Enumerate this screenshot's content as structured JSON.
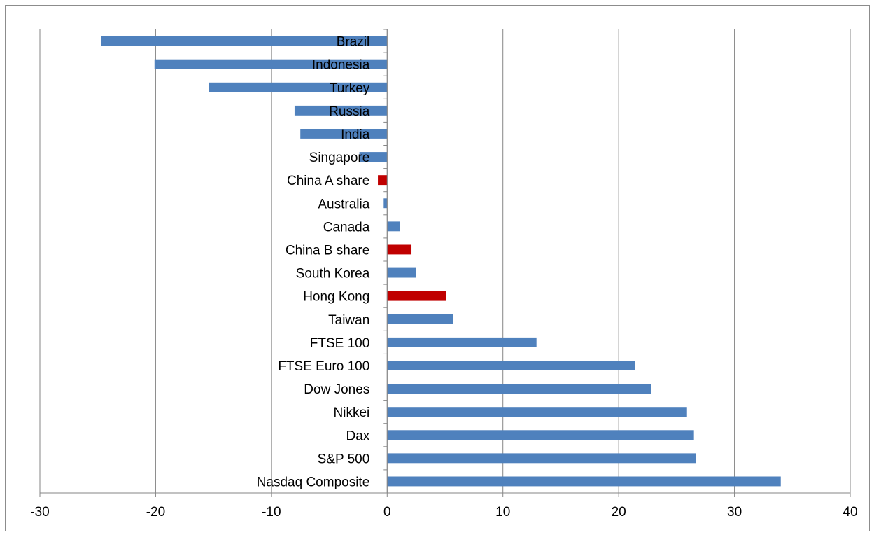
{
  "chart_data": {
    "type": "bar",
    "orientation": "horizontal",
    "categories": [
      "Brazil",
      "Indonesia",
      "Turkey",
      "Russia",
      "India",
      "Singapore",
      "China A share",
      "Australia",
      "Canada",
      "China B share",
      "South Korea",
      "Hong Kong",
      "Taiwan",
      "FTSE 100",
      "FTSE Euro 100",
      "Dow Jones",
      "Nikkei",
      "Dax",
      "S&P 500",
      "Nasdaq Composite"
    ],
    "values": [
      -24.7,
      -20.1,
      -15.4,
      -8.0,
      -7.5,
      -2.4,
      -0.8,
      -0.3,
      1.1,
      2.1,
      2.5,
      5.1,
      5.7,
      12.9,
      21.4,
      22.8,
      25.9,
      26.5,
      26.7,
      34.0
    ],
    "highlighted_categories": [
      "China A share",
      "China B share",
      "Hong Kong"
    ],
    "colors": {
      "default": "#4f81bd",
      "highlight": "#c00000"
    },
    "xlim": [
      -30,
      40
    ],
    "xticks": [
      "-30",
      "-20",
      "-10",
      "0",
      "10",
      "20",
      "30",
      "40"
    ],
    "grid": true,
    "title": "",
    "xlabel": "",
    "ylabel": ""
  }
}
